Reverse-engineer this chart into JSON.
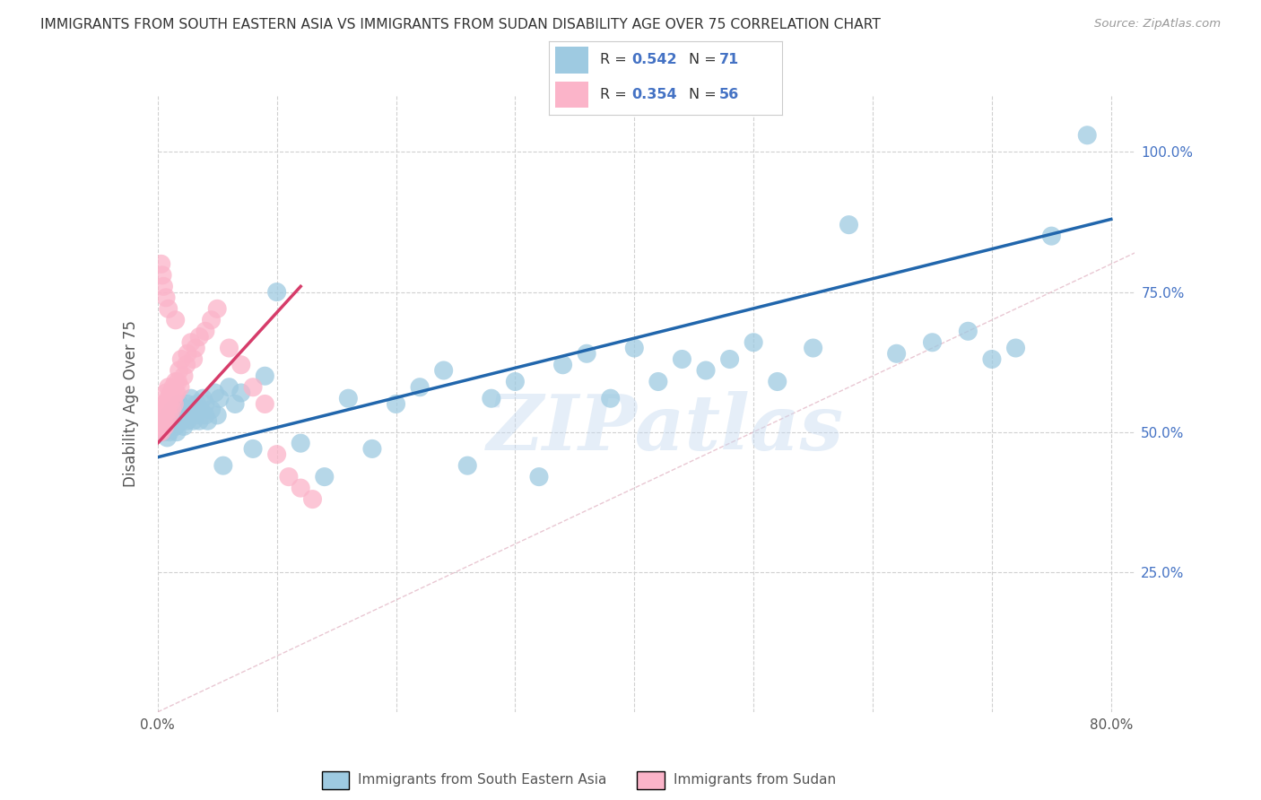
{
  "title": "IMMIGRANTS FROM SOUTH EASTERN ASIA VS IMMIGRANTS FROM SUDAN DISABILITY AGE OVER 75 CORRELATION CHART",
  "source": "Source: ZipAtlas.com",
  "ylabel": "Disability Age Over 75",
  "R1": 0.542,
  "N1": 71,
  "R2": 0.354,
  "N2": 56,
  "color_blue": "#9ecae1",
  "color_pink": "#fbb4c9",
  "color_blue_line": "#2166ac",
  "color_pink_line": "#d63c6a",
  "watermark": "ZIPatlas",
  "legend1_label": "Immigrants from South Eastern Asia",
  "legend2_label": "Immigrants from Sudan",
  "xlim": [
    0.0,
    0.82
  ],
  "ylim": [
    0.0,
    1.1
  ],
  "x_ticks": [
    0.0,
    0.1,
    0.2,
    0.3,
    0.4,
    0.5,
    0.6,
    0.7,
    0.8
  ],
  "x_tick_labels": [
    "0.0%",
    "",
    "",
    "",
    "",
    "",
    "",
    "",
    "80.0%"
  ],
  "y_ticks_right": [
    0.25,
    0.5,
    0.75,
    1.0
  ],
  "y_tick_right_labels": [
    "25.0%",
    "50.0%",
    "75.0%",
    "100.0%"
  ],
  "blue_x": [
    0.005,
    0.007,
    0.008,
    0.009,
    0.01,
    0.01,
    0.012,
    0.013,
    0.015,
    0.015,
    0.016,
    0.018,
    0.02,
    0.02,
    0.022,
    0.023,
    0.025,
    0.025,
    0.027,
    0.028,
    0.03,
    0.03,
    0.032,
    0.033,
    0.035,
    0.036,
    0.038,
    0.04,
    0.04,
    0.042,
    0.045,
    0.048,
    0.05,
    0.052,
    0.055,
    0.06,
    0.065,
    0.07,
    0.08,
    0.09,
    0.1,
    0.12,
    0.14,
    0.16,
    0.18,
    0.2,
    0.22,
    0.24,
    0.26,
    0.28,
    0.3,
    0.32,
    0.34,
    0.36,
    0.38,
    0.4,
    0.42,
    0.44,
    0.46,
    0.48,
    0.5,
    0.52,
    0.55,
    0.58,
    0.62,
    0.65,
    0.68,
    0.7,
    0.72,
    0.75,
    0.78
  ],
  "blue_y": [
    0.5,
    0.52,
    0.49,
    0.51,
    0.53,
    0.5,
    0.52,
    0.54,
    0.51,
    0.53,
    0.5,
    0.55,
    0.52,
    0.54,
    0.51,
    0.53,
    0.55,
    0.52,
    0.54,
    0.56,
    0.52,
    0.54,
    0.53,
    0.55,
    0.52,
    0.54,
    0.56,
    0.53,
    0.55,
    0.52,
    0.54,
    0.57,
    0.53,
    0.56,
    0.44,
    0.58,
    0.55,
    0.57,
    0.47,
    0.6,
    0.75,
    0.48,
    0.42,
    0.56,
    0.47,
    0.55,
    0.58,
    0.61,
    0.44,
    0.56,
    0.59,
    0.42,
    0.62,
    0.64,
    0.56,
    0.65,
    0.59,
    0.63,
    0.61,
    0.63,
    0.66,
    0.59,
    0.65,
    0.87,
    0.64,
    0.66,
    0.68,
    0.63,
    0.65,
    0.85,
    1.03
  ],
  "pink_x": [
    0.001,
    0.001,
    0.002,
    0.002,
    0.003,
    0.003,
    0.004,
    0.004,
    0.005,
    0.005,
    0.006,
    0.006,
    0.007,
    0.007,
    0.008,
    0.008,
    0.009,
    0.009,
    0.01,
    0.01,
    0.011,
    0.012,
    0.013,
    0.013,
    0.014,
    0.015,
    0.015,
    0.016,
    0.017,
    0.018,
    0.019,
    0.02,
    0.022,
    0.024,
    0.025,
    0.028,
    0.03,
    0.032,
    0.035,
    0.04,
    0.045,
    0.05,
    0.06,
    0.07,
    0.08,
    0.09,
    0.1,
    0.11,
    0.12,
    0.13,
    0.003,
    0.004,
    0.005,
    0.007,
    0.009,
    0.015
  ],
  "pink_y": [
    0.5,
    0.52,
    0.51,
    0.53,
    0.5,
    0.52,
    0.54,
    0.51,
    0.53,
    0.55,
    0.51,
    0.53,
    0.55,
    0.57,
    0.52,
    0.54,
    0.56,
    0.58,
    0.53,
    0.55,
    0.57,
    0.54,
    0.56,
    0.58,
    0.55,
    0.57,
    0.59,
    0.57,
    0.59,
    0.61,
    0.58,
    0.63,
    0.6,
    0.62,
    0.64,
    0.66,
    0.63,
    0.65,
    0.67,
    0.68,
    0.7,
    0.72,
    0.65,
    0.62,
    0.58,
    0.55,
    0.46,
    0.42,
    0.4,
    0.38,
    0.8,
    0.78,
    0.76,
    0.74,
    0.72,
    0.7
  ]
}
